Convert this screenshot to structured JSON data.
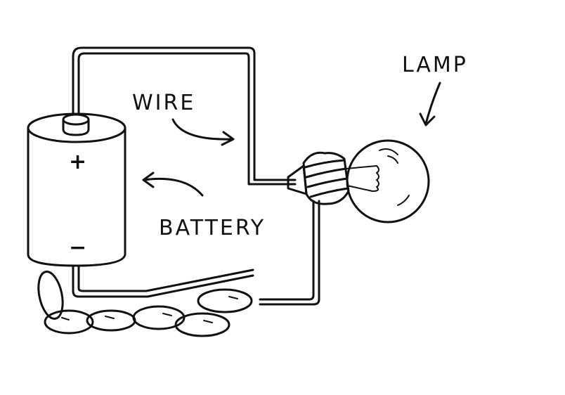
{
  "labels": {
    "wire": "WIRE",
    "lamp": "LAMP",
    "battery": "BATTERY",
    "plus": "+",
    "minus": "−"
  },
  "colors": {
    "ink": "#111111",
    "paper": "#ffffff"
  }
}
